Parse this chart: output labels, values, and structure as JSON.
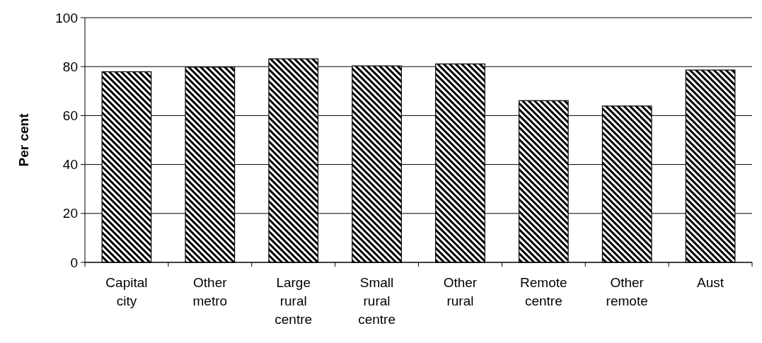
{
  "chart_data": {
    "type": "bar",
    "ylabel": "Per cent",
    "categories": [
      "Capital city",
      "Other metro",
      "Large rural centre",
      "Small rural centre",
      "Other rural",
      "Remote centre",
      "Other remote",
      "Aust"
    ],
    "values": [
      77.9,
      79.8,
      83.2,
      80.3,
      81.1,
      66.1,
      63.9,
      78.6
    ],
    "color": "#000000",
    "ylim": [
      0,
      100
    ],
    "yticks": [
      0,
      20,
      40,
      60,
      80,
      100
    ],
    "grid": "y"
  }
}
